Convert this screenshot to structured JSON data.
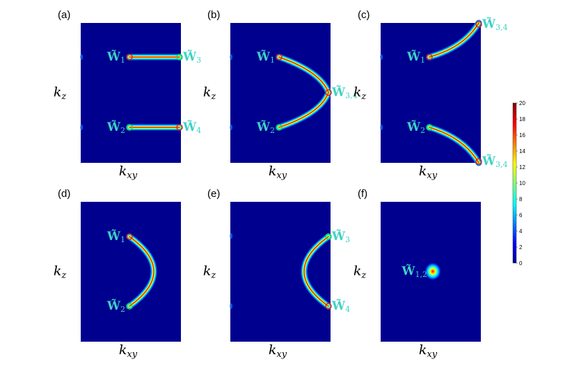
{
  "panels": [
    {
      "label": "(a)",
      "y_axis": "k",
      "y_sub": "z",
      "x_axis": "k",
      "x_sub": "xy",
      "points": [
        {
          "base": "W̃",
          "sub": "1"
        },
        {
          "base": "W̃",
          "sub": "3"
        },
        {
          "base": "W̃",
          "sub": "2"
        },
        {
          "base": "W̃",
          "sub": "4"
        }
      ]
    },
    {
      "label": "(b)",
      "y_axis": "k",
      "y_sub": "z",
      "x_axis": "k",
      "x_sub": "xy",
      "points": [
        {
          "base": "W̃",
          "sub": "1"
        },
        {
          "base": "W̃",
          "sub": "3,4"
        },
        {
          "base": "W̃",
          "sub": "2"
        }
      ]
    },
    {
      "label": "(c)",
      "y_axis": "k",
      "y_sub": "z",
      "x_axis": "k",
      "x_sub": "xy",
      "points": [
        {
          "base": "W̃",
          "sub": "3,4"
        },
        {
          "base": "W̃",
          "sub": "1"
        },
        {
          "base": "W̃",
          "sub": "2"
        },
        {
          "base": "W̃",
          "sub": "3,4"
        }
      ]
    },
    {
      "label": "(d)",
      "y_axis": "k",
      "y_sub": "z",
      "x_axis": "k",
      "x_sub": "xy",
      "points": [
        {
          "base": "W̃",
          "sub": "1"
        },
        {
          "base": "W̃",
          "sub": "2"
        }
      ]
    },
    {
      "label": "(e)",
      "y_axis": "k",
      "y_sub": "z",
      "x_axis": "k",
      "x_sub": "xy",
      "points": [
        {
          "base": "W̃",
          "sub": "3"
        },
        {
          "base": "W̃",
          "sub": "4"
        }
      ]
    },
    {
      "label": "(f)",
      "y_axis": "k",
      "y_sub": "z",
      "x_axis": "k",
      "x_sub": "xy",
      "points": [
        {
          "base": "W̃",
          "sub": "1,2"
        }
      ]
    }
  ],
  "colorbar": {
    "ticks": [
      0,
      2,
      4,
      6,
      8,
      10,
      12,
      14,
      16,
      18,
      20
    ]
  }
}
